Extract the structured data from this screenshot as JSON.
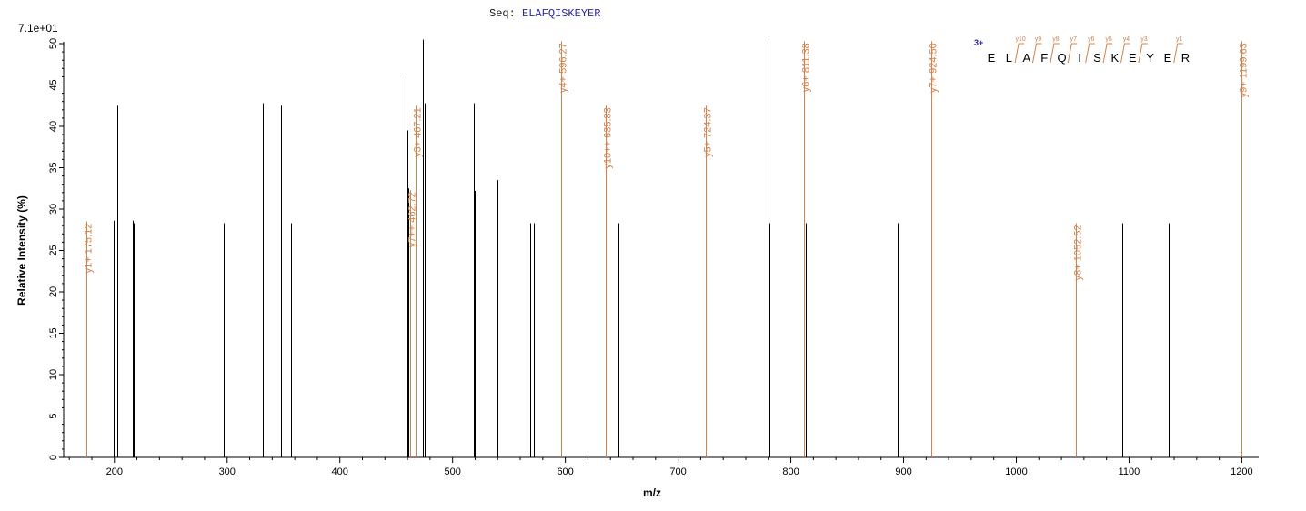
{
  "header": {
    "seq_prefix": "Seq:",
    "sequence": "ELAFQISKEYER",
    "scale_label": "7.1e+01"
  },
  "colors": {
    "matched": "#d4824a",
    "unmatched": "#000000",
    "charge": "#22229a"
  },
  "chart_data": {
    "type": "bar",
    "xlabel": "m/z",
    "ylabel": "Relative   Intensity (%)",
    "xlim": [
      155,
      1215
    ],
    "ylim": [
      0,
      50
    ],
    "x_ticks": [
      200,
      300,
      400,
      500,
      600,
      700,
      800,
      900,
      1000,
      1100,
      1200
    ],
    "y_ticks": [
      0,
      5,
      10,
      15,
      20,
      25,
      30,
      35,
      40,
      45,
      50
    ],
    "peaks": [
      {
        "x": 175.12,
        "y": 28.5,
        "label": "y1+ 175.12"
      },
      {
        "x": 199.0,
        "y": 28.6
      },
      {
        "x": 202.5,
        "y": 42.5
      },
      {
        "x": 216.0,
        "y": 28.6
      },
      {
        "x": 217.0,
        "y": 28.3
      },
      {
        "x": 297.0,
        "y": 28.3
      },
      {
        "x": 332.0,
        "y": 42.8
      },
      {
        "x": 348.0,
        "y": 42.5
      },
      {
        "x": 357.0,
        "y": 28.3
      },
      {
        "x": 459.0,
        "y": 46.3
      },
      {
        "x": 460.0,
        "y": 39.5
      },
      {
        "x": 461.0,
        "y": 32.5
      },
      {
        "x": 462.72,
        "y": 32.3,
        "label": "y7++ 462.72"
      },
      {
        "x": 467.21,
        "y": 42.5,
        "label": "y3+ 467.21"
      },
      {
        "x": 474.0,
        "y": 50.5
      },
      {
        "x": 475.0,
        "y": 42.8
      },
      {
        "x": 519.0,
        "y": 42.8
      },
      {
        "x": 520.0,
        "y": 32.2
      },
      {
        "x": 540.0,
        "y": 33.5
      },
      {
        "x": 569.0,
        "y": 28.3
      },
      {
        "x": 572.0,
        "y": 28.3
      },
      {
        "x": 596.27,
        "y": 50.3,
        "label": "y4+ 596.27"
      },
      {
        "x": 635.83,
        "y": 42.5,
        "label": "y10++ 635.83"
      },
      {
        "x": 647.0,
        "y": 28.3
      },
      {
        "x": 724.37,
        "y": 42.5,
        "label": "y5+ 724.37"
      },
      {
        "x": 780.0,
        "y": 50.3
      },
      {
        "x": 781.0,
        "y": 28.3
      },
      {
        "x": 811.38,
        "y": 50.3,
        "label": "y6+ 811.38"
      },
      {
        "x": 813.0,
        "y": 28.3
      },
      {
        "x": 895.0,
        "y": 28.3
      },
      {
        "x": 924.5,
        "y": 50.3,
        "label": "y7+ 924.50"
      },
      {
        "x": 1052.52,
        "y": 28.3,
        "label": "y8+ 1052.52"
      },
      {
        "x": 1094.0,
        "y": 28.3
      },
      {
        "x": 1135.0,
        "y": 28.3
      },
      {
        "x": 1199.63,
        "y": 50.3,
        "label": "y9+ 1199.63"
      }
    ],
    "fragment_map": {
      "charge": "3+",
      "residues": [
        "E",
        "L",
        "A",
        "F",
        "Q",
        "I",
        "S",
        "K",
        "E",
        "Y",
        "E",
        "R"
      ],
      "y_ions": [
        "y10",
        "y9",
        "y8",
        "y7",
        "y6",
        "y5",
        "y4",
        "y3",
        "y1"
      ],
      "y_ion_after_residue": [
        2,
        3,
        4,
        5,
        6,
        7,
        8,
        9,
        11
      ]
    }
  }
}
